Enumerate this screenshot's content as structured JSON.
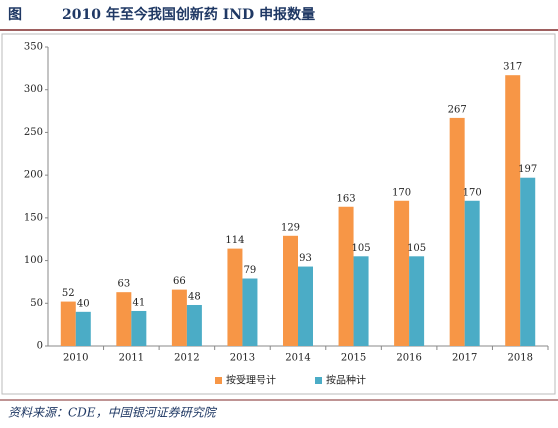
{
  "figure_label": "图",
  "source": "资料来源：CDE，中国银河证券研究院",
  "chart_data": {
    "type": "bar",
    "title": "2010 年至今我国创新药 IND 申报数量",
    "categories": [
      "2010",
      "2011",
      "2012",
      "2013",
      "2014",
      "2015",
      "2016",
      "2017",
      "2018"
    ],
    "series": [
      {
        "name": "按受理号计",
        "color": "#f79646",
        "values": [
          52,
          63,
          66,
          114,
          129,
          163,
          170,
          267,
          317
        ]
      },
      {
        "name": "按品种计",
        "color": "#4bacc6",
        "values": [
          40,
          41,
          48,
          79,
          93,
          105,
          105,
          170,
          197
        ]
      }
    ],
    "ylim": [
      0,
      350
    ],
    "yticks": [
      0,
      50,
      100,
      150,
      200,
      250,
      300,
      350
    ],
    "grid": false,
    "data_labels": true,
    "legend": "bottom"
  }
}
